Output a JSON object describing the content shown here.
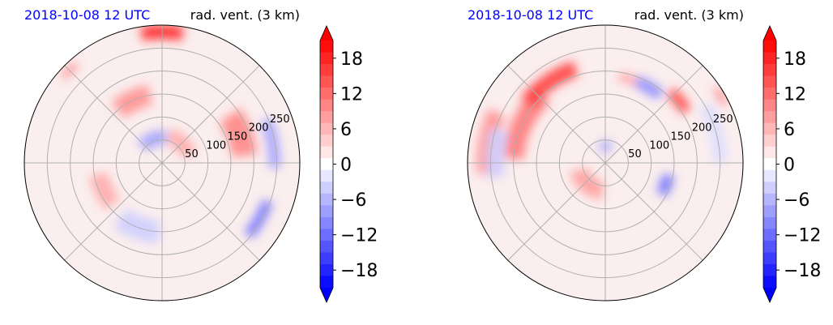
{
  "figure": {
    "colors": {
      "negative": "#0000ff",
      "positive": "#ff0000",
      "date_text": "#0000ff",
      "grid": "#b0b0b0"
    }
  },
  "chart_data": [
    {
      "type": "heatmap",
      "projection": "polar",
      "title_left": "2018-10-08 12 UTC",
      "title_right": "rad. vent. (3 km)",
      "radial_ticks": [
        "50",
        "100",
        "150",
        "200",
        "250"
      ],
      "r_ticks_values": [
        50,
        100,
        150,
        200,
        250
      ],
      "r_max": 300,
      "angular_gridlines_deg": [
        0,
        45,
        90,
        135,
        180,
        225,
        270,
        315
      ],
      "colorbar": {
        "tick_labels": [
          "18",
          "12",
          "6",
          "0",
          "−6",
          "−12",
          "−18"
        ],
        "tick_values": [
          18,
          12,
          6,
          0,
          -6,
          -12,
          -18
        ],
        "vmin": -21,
        "vmax": 21,
        "levels_step": 2,
        "extend": "both",
        "colormap": "bwr"
      },
      "features": [
        {
          "sign": 1,
          "a": 90,
          "r": 285,
          "da": 18,
          "dr": 30,
          "mag": 18
        },
        {
          "sign": 1,
          "a": 115,
          "r": 150,
          "da": 30,
          "dr": 45,
          "mag": 9
        },
        {
          "sign": 1,
          "a": 20,
          "r": 180,
          "da": 30,
          "dr": 55,
          "mag": 10
        },
        {
          "sign": -1,
          "a": 10,
          "r": 245,
          "da": 25,
          "dr": 25,
          "mag": 8
        },
        {
          "sign": -1,
          "a": 330,
          "r": 245,
          "da": 20,
          "dr": 22,
          "mag": 12
        },
        {
          "sign": 1,
          "a": 45,
          "r": 60,
          "da": 60,
          "dr": 35,
          "mag": 7
        },
        {
          "sign": -1,
          "a": 110,
          "r": 55,
          "da": 60,
          "dr": 30,
          "mag": 8
        },
        {
          "sign": 1,
          "a": 205,
          "r": 140,
          "da": 30,
          "dr": 40,
          "mag": 7
        },
        {
          "sign": -1,
          "a": 250,
          "r": 150,
          "da": 35,
          "dr": 50,
          "mag": 4
        },
        {
          "sign": 1,
          "a": 135,
          "r": 285,
          "da": 8,
          "dr": 15,
          "mag": 10
        }
      ]
    },
    {
      "type": "heatmap",
      "projection": "polar",
      "title_left": "2018-10-08 12 UTC",
      "title_right": "rad. vent. (3 km)",
      "radial_ticks": [
        "50",
        "100",
        "150",
        "200",
        "250"
      ],
      "r_ticks_values": [
        50,
        100,
        150,
        200,
        250
      ],
      "r_max": 300,
      "angular_gridlines_deg": [
        0,
        45,
        90,
        135,
        180,
        225,
        270,
        315
      ],
      "colorbar": {
        "tick_labels": [
          "18",
          "12",
          "6",
          "0",
          "−6",
          "−12",
          "−18"
        ],
        "tick_values": [
          18,
          12,
          6,
          0,
          -6,
          -12,
          -18
        ],
        "vmin": -21,
        "vmax": 21,
        "levels_step": 2,
        "extend": "both",
        "colormap": "bwr"
      },
      "features": [
        {
          "sign": 1,
          "a": 155,
          "r": 200,
          "da": 45,
          "dr": 45,
          "mag": 11
        },
        {
          "sign": 1,
          "a": 125,
          "r": 215,
          "da": 35,
          "dr": 35,
          "mag": 16
        },
        {
          "sign": 1,
          "a": 170,
          "r": 260,
          "da": 30,
          "dr": 40,
          "mag": 9
        },
        {
          "sign": 1,
          "a": 40,
          "r": 210,
          "da": 15,
          "dr": 25,
          "mag": 15
        },
        {
          "sign": -1,
          "a": 60,
          "r": 190,
          "da": 18,
          "dr": 25,
          "mag": 10
        },
        {
          "sign": 1,
          "a": 75,
          "r": 190,
          "da": 12,
          "dr": 18,
          "mag": 8
        },
        {
          "sign": -1,
          "a": 340,
          "r": 140,
          "da": 18,
          "dr": 25,
          "mag": 12
        },
        {
          "sign": -1,
          "a": 175,
          "r": 240,
          "da": 25,
          "dr": 40,
          "mag": 4
        },
        {
          "sign": 1,
          "a": 230,
          "r": 60,
          "da": 70,
          "dr": 40,
          "mag": 8
        },
        {
          "sign": -1,
          "a": 90,
          "r": 35,
          "da": 40,
          "dr": 25,
          "mag": 7
        },
        {
          "sign": -1,
          "a": 15,
          "r": 250,
          "da": 30,
          "dr": 30,
          "mag": 3
        },
        {
          "sign": 1,
          "a": 30,
          "r": 290,
          "da": 8,
          "dr": 12,
          "mag": 12
        }
      ]
    }
  ]
}
